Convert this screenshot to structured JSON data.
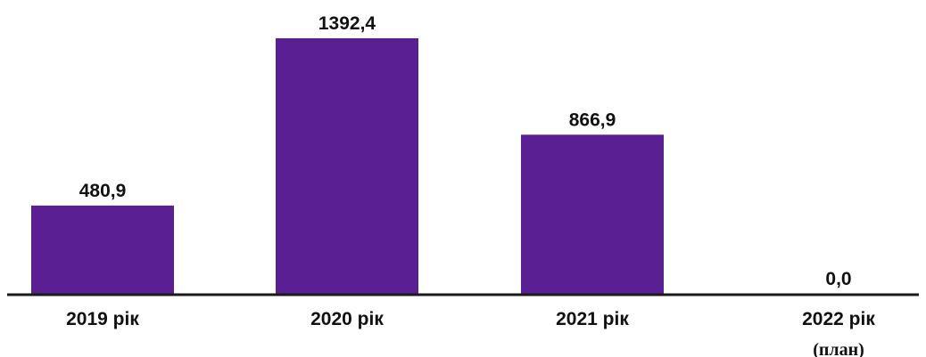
{
  "chart_data": {
    "type": "bar",
    "categories": [
      "2019 рік",
      "2020 рік",
      "2021 рік",
      "2022 рік"
    ],
    "category_sublabels": [
      "",
      "",
      "",
      "(план)"
    ],
    "values": [
      480.9,
      1392.4,
      866.9,
      0.0
    ],
    "value_labels": [
      "480,9",
      "1392,4",
      "866,9",
      "0,0"
    ],
    "title": "",
    "xlabel": "",
    "ylabel": "",
    "ylim": [
      0,
      1500
    ],
    "grid": false,
    "legend": "none",
    "colors": {
      "bar": "#5b1f94",
      "axis": "#1a1a1a"
    }
  }
}
